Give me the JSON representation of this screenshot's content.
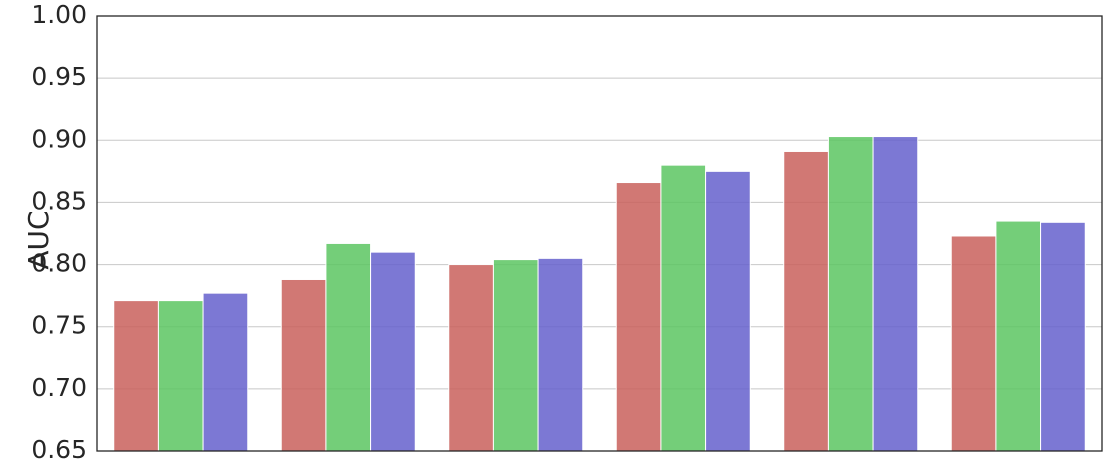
{
  "chart_data": {
    "type": "grouped_bar",
    "ylabel": "AUC",
    "categories": [
      null,
      null,
      null,
      null,
      null,
      null
    ],
    "series": [
      {
        "color": "#c9605c",
        "values": [
          0.771,
          0.788,
          0.8,
          0.866,
          0.891,
          0.823
        ]
      },
      {
        "color": "#5cc662",
        "values": [
          0.771,
          0.817,
          0.804,
          0.88,
          0.903,
          0.835
        ]
      },
      {
        "color": "#6560cc",
        "values": [
          0.777,
          0.81,
          0.805,
          0.875,
          0.903,
          0.834
        ]
      }
    ],
    "ylim": [
      0.65,
      1.0
    ],
    "yticks": [
      0.65,
      {
        "value": 0.7,
        "label": "0.70"
      },
      0.75,
      {
        "value": 0.8,
        "label": "0.80"
      },
      0.85,
      {
        "value": 0.9,
        "label": "0.90"
      },
      0.95,
      {
        "value": 1.0,
        "label": "1.00"
      }
    ],
    "grid": true
  }
}
